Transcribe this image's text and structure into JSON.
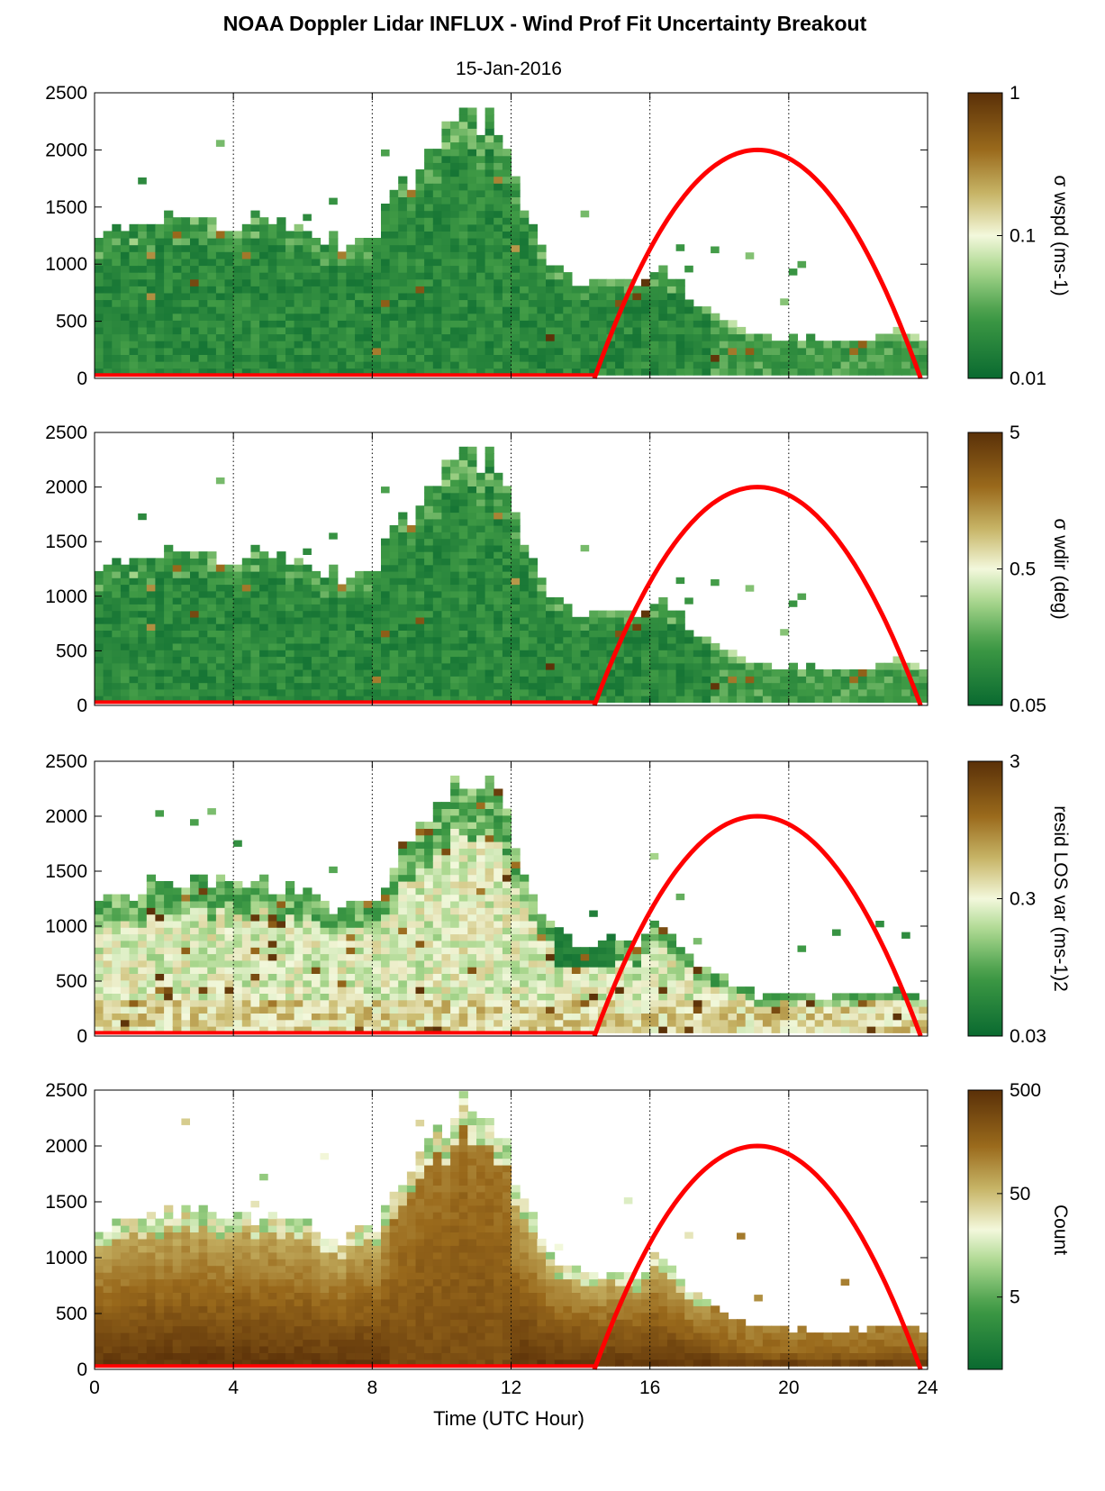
{
  "figure": {
    "title": "NOAA Doppler Lidar INFLUX - Wind Prof Fit Uncertainty Breakout",
    "subtitle": "15-Jan-2016",
    "xlabel": "Time (UTC Hour)"
  },
  "colors": {
    "low": "#0a6a30",
    "mid": "#f3f8dc",
    "high": "#5a3008",
    "sun_curve": "#ff0000",
    "surface_line": "#b02010"
  },
  "chart_data": [
    {
      "type": "heatmap",
      "ylabel": "",
      "xlim": [
        0,
        24
      ],
      "ylim": [
        0,
        2500
      ],
      "xticks": [
        0,
        4,
        8,
        12,
        16,
        20,
        24
      ],
      "yticks": [
        0,
        500,
        1000,
        1500,
        2000,
        2500
      ],
      "x_gridlines": [
        4,
        8,
        12,
        16,
        20
      ],
      "colorbar": {
        "label": "σ wspd (ms-1)",
        "scale": "log",
        "range": [
          0.01,
          1
        ],
        "ticks": [
          "0.01",
          "0.1",
          "1"
        ]
      },
      "color_mode": "low",
      "coverage_top_m": [
        [
          0,
          1260
        ],
        [
          1,
          1300
        ],
        [
          2,
          1420
        ],
        [
          3,
          1400
        ],
        [
          4,
          1360
        ],
        [
          5,
          1380
        ],
        [
          6,
          1300
        ],
        [
          7,
          1150
        ],
        [
          8,
          1300
        ],
        [
          8.5,
          1600
        ],
        [
          9,
          1750
        ],
        [
          9.5,
          2000
        ],
        [
          10,
          2200
        ],
        [
          10.5,
          2380
        ],
        [
          11,
          2300
        ],
        [
          11.5,
          2200
        ],
        [
          12,
          1700
        ],
        [
          13,
          1000
        ],
        [
          14,
          820
        ],
        [
          15,
          900
        ],
        [
          15.5,
          800
        ],
        [
          16,
          1000
        ],
        [
          16.5,
          900
        ],
        [
          17,
          700
        ],
        [
          17.5,
          600
        ],
        [
          18,
          500
        ],
        [
          19,
          350
        ],
        [
          20,
          340
        ],
        [
          21,
          320
        ],
        [
          22,
          330
        ],
        [
          23,
          400
        ],
        [
          23.8,
          300
        ]
      ],
      "sun_elevation_curve": {
        "start_hr": 14.4,
        "peak_hr": 19.1,
        "peak_m": 2000,
        "end_hr": 23.8,
        "end_m": 130
      }
    },
    {
      "type": "heatmap",
      "ylabel": "σ wdir (deg)",
      "xlim": [
        0,
        24
      ],
      "ylim": [
        0,
        2500
      ],
      "xticks": [
        0,
        4,
        8,
        12,
        16,
        20,
        24
      ],
      "yticks": [
        0,
        500,
        1000,
        1500,
        2000,
        2500
      ],
      "x_gridlines": [
        4,
        8,
        12,
        16,
        20
      ],
      "colorbar": {
        "label": "σ wdir (deg)",
        "scale": "log",
        "range": [
          0.05,
          5
        ],
        "ticks": [
          "0.05",
          "0.5",
          "5"
        ]
      },
      "color_mode": "low",
      "coverage_top_m": [
        [
          0,
          1260
        ],
        [
          1,
          1300
        ],
        [
          2,
          1420
        ],
        [
          3,
          1400
        ],
        [
          4,
          1360
        ],
        [
          5,
          1380
        ],
        [
          6,
          1300
        ],
        [
          7,
          1150
        ],
        [
          8,
          1300
        ],
        [
          8.5,
          1600
        ],
        [
          9,
          1750
        ],
        [
          9.5,
          2000
        ],
        [
          10,
          2200
        ],
        [
          10.5,
          2380
        ],
        [
          11,
          2300
        ],
        [
          11.5,
          2200
        ],
        [
          12,
          1700
        ],
        [
          13,
          1000
        ],
        [
          14,
          820
        ],
        [
          15,
          900
        ],
        [
          15.5,
          800
        ],
        [
          16,
          1000
        ],
        [
          16.5,
          900
        ],
        [
          17,
          700
        ],
        [
          17.5,
          600
        ],
        [
          18,
          500
        ],
        [
          19,
          350
        ],
        [
          20,
          340
        ],
        [
          21,
          320
        ],
        [
          22,
          330
        ],
        [
          23,
          400
        ],
        [
          23.8,
          300
        ]
      ],
      "sun_elevation_curve": {
        "start_hr": 14.4,
        "peak_hr": 19.1,
        "peak_m": 2000,
        "end_hr": 23.8,
        "end_m": 130
      }
    },
    {
      "type": "heatmap",
      "ylabel": "resid LOS var (ms-1)2",
      "xlim": [
        0,
        24
      ],
      "ylim": [
        0,
        2500
      ],
      "xticks": [
        0,
        4,
        8,
        12,
        16,
        20,
        24
      ],
      "yticks": [
        0,
        500,
        1000,
        1500,
        2000,
        2500
      ],
      "x_gridlines": [
        4,
        8,
        12,
        16,
        20
      ],
      "colorbar": {
        "label": "resid LOS var (ms-1)2",
        "scale": "log",
        "range": [
          0.03,
          3
        ],
        "ticks": [
          "0.03",
          "0.3",
          "3"
        ]
      },
      "color_mode": "mixed",
      "coverage_top_m": [
        [
          0,
          1260
        ],
        [
          1,
          1300
        ],
        [
          2,
          1420
        ],
        [
          3,
          1400
        ],
        [
          4,
          1360
        ],
        [
          5,
          1380
        ],
        [
          6,
          1300
        ],
        [
          7,
          1150
        ],
        [
          8,
          1300
        ],
        [
          8.5,
          1600
        ],
        [
          9,
          1750
        ],
        [
          9.5,
          2000
        ],
        [
          10,
          2200
        ],
        [
          10.5,
          2380
        ],
        [
          11,
          2300
        ],
        [
          11.5,
          2200
        ],
        [
          12,
          1700
        ],
        [
          13,
          1000
        ],
        [
          14,
          820
        ],
        [
          15,
          900
        ],
        [
          15.5,
          800
        ],
        [
          16,
          1000
        ],
        [
          16.5,
          900
        ],
        [
          17,
          700
        ],
        [
          17.5,
          600
        ],
        [
          18,
          500
        ],
        [
          19,
          350
        ],
        [
          20,
          340
        ],
        [
          21,
          320
        ],
        [
          22,
          330
        ],
        [
          23,
          400
        ],
        [
          23.8,
          300
        ]
      ],
      "sun_elevation_curve": {
        "start_hr": 14.4,
        "peak_hr": 19.1,
        "peak_m": 2000,
        "end_hr": 23.8,
        "end_m": 130
      }
    },
    {
      "type": "heatmap",
      "ylabel": "Count",
      "xlim": [
        0,
        24
      ],
      "ylim": [
        0,
        2500
      ],
      "xticks": [
        0,
        4,
        8,
        12,
        16,
        20,
        24
      ],
      "yticks": [
        0,
        500,
        1000,
        1500,
        2000,
        2500
      ],
      "x_gridlines": [
        4,
        8,
        12,
        16,
        20
      ],
      "colorbar": {
        "label": "Count",
        "scale": "log",
        "range": [
          1,
          500
        ],
        "ticks": [
          "5",
          "50",
          "500"
        ]
      },
      "color_mode": "count",
      "coverage_top_m": [
        [
          0,
          1260
        ],
        [
          1,
          1300
        ],
        [
          2,
          1420
        ],
        [
          3,
          1400
        ],
        [
          4,
          1360
        ],
        [
          5,
          1380
        ],
        [
          6,
          1300
        ],
        [
          7,
          1150
        ],
        [
          8,
          1300
        ],
        [
          8.5,
          1600
        ],
        [
          9,
          1750
        ],
        [
          9.5,
          2000
        ],
        [
          10,
          2200
        ],
        [
          10.5,
          2380
        ],
        [
          11,
          2300
        ],
        [
          11.5,
          2200
        ],
        [
          12,
          1700
        ],
        [
          13,
          1000
        ],
        [
          14,
          820
        ],
        [
          15,
          900
        ],
        [
          15.5,
          800
        ],
        [
          16,
          1000
        ],
        [
          16.5,
          900
        ],
        [
          17,
          700
        ],
        [
          17.5,
          600
        ],
        [
          18,
          500
        ],
        [
          19,
          350
        ],
        [
          20,
          340
        ],
        [
          21,
          320
        ],
        [
          22,
          330
        ],
        [
          23,
          400
        ],
        [
          23.8,
          300
        ]
      ],
      "sun_elevation_curve": {
        "start_hr": 14.4,
        "peak_hr": 19.1,
        "peak_m": 2000,
        "end_hr": 23.8,
        "end_m": 130
      }
    }
  ]
}
